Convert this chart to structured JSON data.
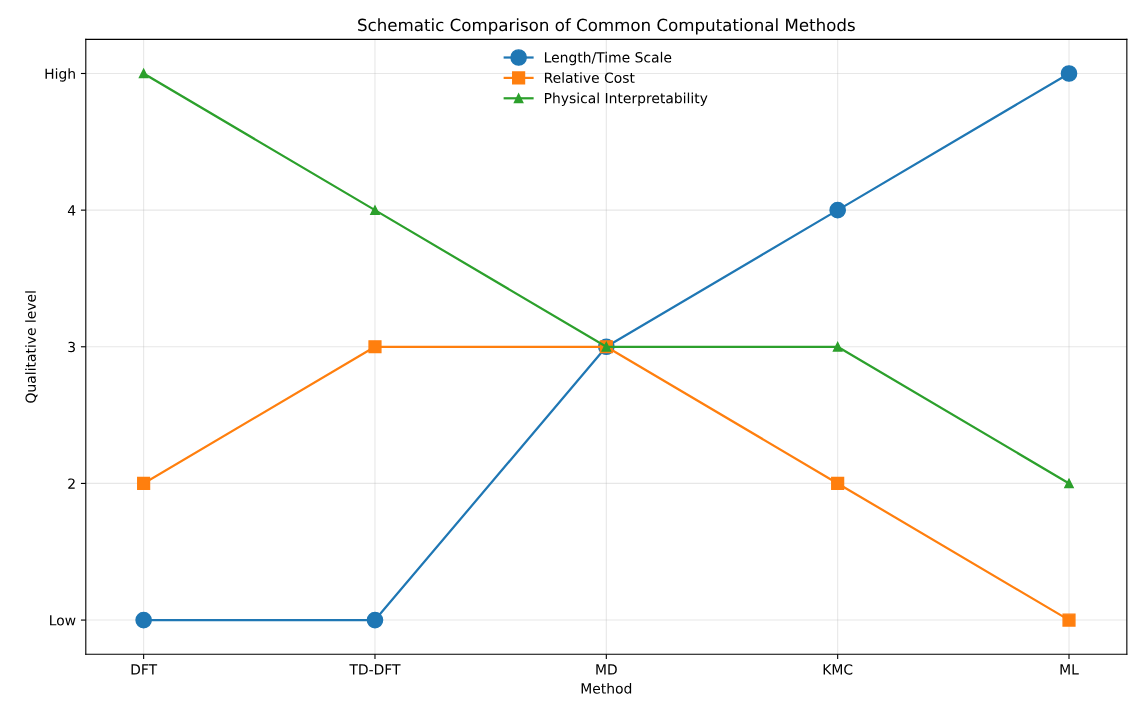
{
  "chart_data": {
    "type": "line",
    "title": "Schematic Comparison of Common Computational Methods",
    "xlabel": "Method",
    "ylabel": "Qualitative level",
    "categories": [
      "DFT",
      "TD-DFT",
      "MD",
      "KMC",
      "ML"
    ],
    "series": [
      {
        "name": "Length/Time Scale",
        "color": "#1f77b4",
        "marker": "circle",
        "values": [
          1,
          1,
          3,
          4,
          5
        ]
      },
      {
        "name": "Relative Cost",
        "color": "#ff7f0e",
        "marker": "square",
        "values": [
          2,
          3,
          3,
          2,
          1
        ]
      },
      {
        "name": "Physical Interpretability",
        "color": "#2ca02c",
        "marker": "triangle",
        "values": [
          5,
          4,
          3,
          3,
          2
        ]
      }
    ],
    "ylim": [
      0.75,
      5.25
    ],
    "yticks": [
      {
        "value": 1,
        "label": "Low"
      },
      2,
      3,
      4,
      {
        "value": 5,
        "label": "High"
      }
    ],
    "grid": true,
    "legend": "upper center",
    "line_style": "solid"
  }
}
